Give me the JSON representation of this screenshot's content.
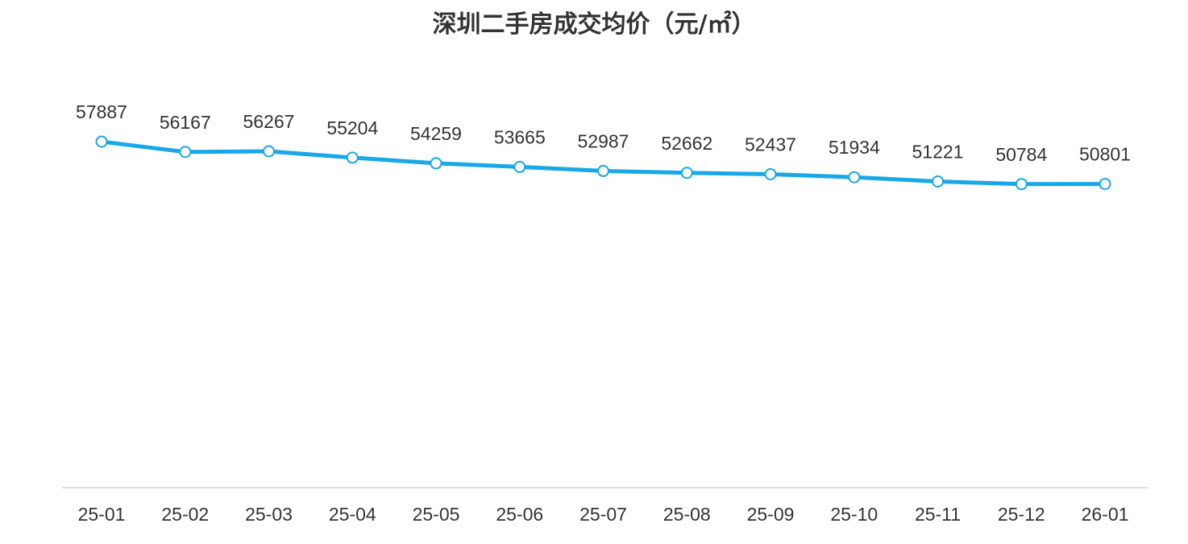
{
  "chart_data": {
    "type": "line",
    "title": "深圳二手房成交均价（元/㎡）",
    "xlabel": "",
    "ylabel": "",
    "categories": [
      "25-01",
      "25-02",
      "25-03",
      "25-04",
      "25-05",
      "25-06",
      "25-07",
      "25-08",
      "25-09",
      "25-10",
      "25-11",
      "25-12",
      "26-01"
    ],
    "series": [
      {
        "values": [
          57887,
          56167,
          56267,
          55204,
          54259,
          53665,
          52987,
          52662,
          52437,
          51934,
          51221,
          50784,
          50801
        ]
      }
    ],
    "ylim": [
      0,
      57887
    ],
    "grid": false,
    "legend": "none",
    "line_color": "#17a8e8",
    "marker_fill": "#ffffff",
    "text_color": "#333333"
  }
}
